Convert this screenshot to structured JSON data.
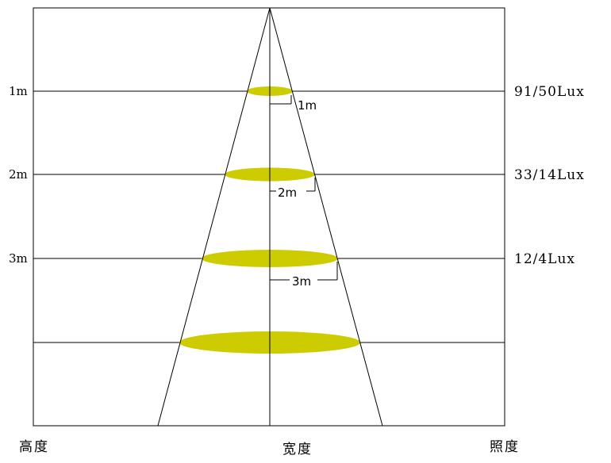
{
  "colors": {
    "line": "#000000",
    "spot_fill": "#cccc00",
    "background": "#ffffff"
  },
  "diagram": {
    "levels": [
      {
        "height_label": "1m",
        "width_label": "1m",
        "lux_label": "91/50Lux"
      },
      {
        "height_label": "2m",
        "width_label": "2m",
        "lux_label": "33/14Lux"
      },
      {
        "height_label": "3m",
        "width_label": "3m",
        "lux_label": "12/4Lux"
      },
      {
        "height_label": "",
        "width_label": "",
        "lux_label": ""
      }
    ],
    "axis_labels": {
      "height": "高度",
      "width": "宽度",
      "illuminance": "照度"
    }
  }
}
